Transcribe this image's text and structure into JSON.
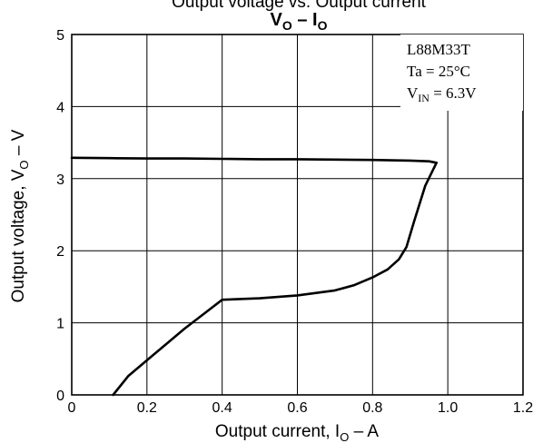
{
  "chart_data": {
    "type": "line",
    "top_caption": "Output voltage vs. Output current",
    "title": {
      "main": "V",
      "sub1": "O",
      "dash": " – I",
      "sub2": "O"
    },
    "xlabel": {
      "pre": "Output current, I",
      "sub": "O",
      "post": " – A"
    },
    "ylabel": {
      "pre": "Output voltage, V",
      "sub": "O",
      "post": " – V"
    },
    "xlim": [
      0,
      1.2
    ],
    "ylim": [
      0,
      5
    ],
    "x_ticks": [
      0,
      0.2,
      0.4,
      0.6,
      0.8,
      1.0,
      1.2
    ],
    "x_tick_labels": [
      "0",
      "0.2",
      "0.4",
      "0.6",
      "0.8",
      "1.0",
      "1.2"
    ],
    "y_ticks": [
      0,
      1,
      2,
      3,
      4,
      5
    ],
    "y_tick_labels": [
      "0",
      "1",
      "2",
      "3",
      "4",
      "5"
    ],
    "grid": true,
    "annotation": {
      "line1": "L88M33T",
      "line2": "Ta = 25°C",
      "line3_pre": "V",
      "line3_sub": "IN",
      "line3_post": " = 6.3V"
    },
    "series": [
      {
        "x": [
          0.97,
          0.95,
          0.9,
          0.8,
          0.7,
          0.6,
          0.5,
          0.4,
          0.3,
          0.2,
          0.1,
          0.0
        ],
        "y": [
          3.22,
          3.24,
          3.25,
          3.26,
          3.265,
          3.27,
          3.27,
          3.275,
          3.28,
          3.28,
          3.285,
          3.29
        ]
      },
      {
        "x": [
          0.97,
          0.94,
          0.91,
          0.89,
          0.87,
          0.84,
          0.8,
          0.75,
          0.7,
          0.6,
          0.5,
          0.4,
          0.35,
          0.3,
          0.2,
          0.15,
          0.11
        ],
        "y": [
          3.22,
          2.9,
          2.4,
          2.05,
          1.88,
          1.74,
          1.63,
          1.52,
          1.45,
          1.38,
          1.34,
          1.32,
          1.12,
          0.92,
          0.48,
          0.26,
          0.0
        ]
      }
    ]
  }
}
